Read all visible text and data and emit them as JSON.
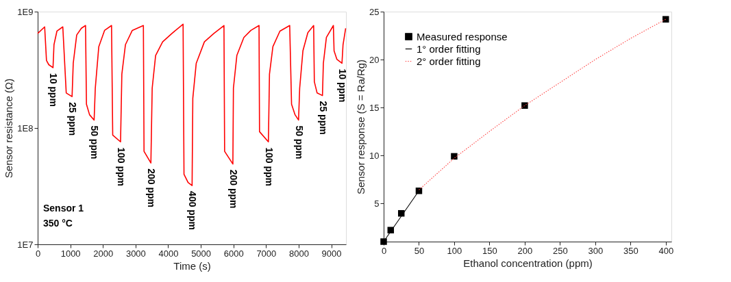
{
  "chart_data": [
    {
      "type": "line",
      "xlabel": "Time (s)",
      "ylabel": "Sensor resistance (Ω)",
      "log": "y",
      "grid": false,
      "xlim": [
        0,
        9450
      ],
      "ylim": [
        10000000,
        1000000000
      ],
      "xticks": [
        0,
        1000,
        2000,
        3000,
        4000,
        5000,
        6000,
        7000,
        8000,
        9000
      ],
      "yticks": [
        {
          "value": 10000000,
          "label": "1E7"
        },
        {
          "value": 100000000,
          "label": "1E8"
        },
        {
          "value": 1000000000,
          "label": "1E9"
        }
      ],
      "series": [
        {
          "color": "#ff0000",
          "line_style": "solid",
          "x": [
            0,
            214,
            270,
            340,
            470,
            500,
            590,
            770,
            875,
            1054,
            1090,
            1196,
            1340,
            1467,
            1495,
            1590,
            1730,
            1766,
            1873,
            2050,
            2264,
            2300,
            2540,
            2580,
            2690,
            2900,
            3240,
            3260,
            3470,
            3510,
            3615,
            3830,
            4115,
            4457,
            4485,
            4610,
            4733,
            4755,
            4860,
            5110,
            5400,
            5710,
            5730,
            5983,
            6000,
            6105,
            6320,
            6535,
            6785,
            6800,
            7072,
            7105,
            7210,
            7425,
            7725,
            7782,
            7889,
            7996,
            8031,
            8130,
            8281,
            8459,
            8480,
            8565,
            8729,
            8757,
            8850,
            9064,
            9085,
            9170,
            9327,
            9360,
            9440
          ],
          "values": [
            650000000.0,
            740000000.0,
            380000000.0,
            350000000.0,
            330000000.0,
            520000000.0,
            680000000.0,
            740000000.0,
            200000000.0,
            186000000.0,
            360000000.0,
            630000000.0,
            720000000.0,
            760000000.0,
            160000000.0,
            130000000.0,
            117000000.0,
            220000000.0,
            500000000.0,
            690000000.0,
            760000000.0,
            87000000.0,
            76000000.0,
            290000000.0,
            520000000.0,
            690000000.0,
            760000000.0,
            63000000.0,
            50000000.0,
            220000000.0,
            420000000.0,
            550000000.0,
            650000000.0,
            780000000.0,
            40000000.0,
            34000000.0,
            32000000.0,
            180000000.0,
            360000000.0,
            550000000.0,
            650000000.0,
            760000000.0,
            63000000.0,
            49000000.0,
            220000000.0,
            420000000.0,
            600000000.0,
            690000000.0,
            760000000.0,
            93000000.0,
            76000000.0,
            290000000.0,
            500000000.0,
            680000000.0,
            760000000.0,
            160000000.0,
            130000000.0,
            117000000.0,
            220000000.0,
            460000000.0,
            660000000.0,
            760000000.0,
            250000000.0,
            200000000.0,
            190000000.0,
            360000000.0,
            600000000.0,
            760000000.0,
            460000000.0,
            390000000.0,
            360000000.0,
            520000000.0,
            720000000.0
          ]
        }
      ],
      "annotations": [
        {
          "text": "10 ppm",
          "x": 470,
          "y": 330000000.0
        },
        {
          "text": "25 ppm",
          "x": 1054,
          "y": 186000000.0
        },
        {
          "text": "50 ppm",
          "x": 1730,
          "y": 117000000.0
        },
        {
          "text": "100 ppm",
          "x": 2540,
          "y": 76000000.0
        },
        {
          "text": "200 ppm",
          "x": 3470,
          "y": 50000000.0
        },
        {
          "text": "400 ppm",
          "x": 4733,
          "y": 32000000.0
        },
        {
          "text": "200 ppm",
          "x": 5983,
          "y": 49000000.0
        },
        {
          "text": "100 ppm",
          "x": 7072,
          "y": 76000000.0
        },
        {
          "text": "50 ppm",
          "x": 7996,
          "y": 117000000.0
        },
        {
          "text": "25 ppm",
          "x": 8729,
          "y": 190000000.0
        },
        {
          "text": "10 ppm",
          "x": 9327,
          "y": 360000000.0
        },
        "Sensor 1",
        "350 °C"
      ]
    },
    {
      "type": "scatter",
      "xlabel": "Ethanol concentration (ppm)",
      "ylabel": "Sensor response (S = Ra/Rg)",
      "grid": false,
      "legend": "top left",
      "xlim": [
        0,
        408
      ],
      "ylim": [
        1,
        25
      ],
      "xticks": [
        0,
        50,
        100,
        150,
        200,
        250,
        300,
        350,
        400
      ],
      "yticks": [
        5,
        10,
        15,
        20,
        25
      ],
      "series": [
        {
          "name": "Measured response",
          "color": "#000000",
          "marker": "square",
          "x": [
            0,
            10,
            25,
            50,
            100,
            200,
            400
          ],
          "values": [
            1,
            2.2,
            3.95,
            6.3,
            9.9,
            15.2,
            24.2
          ]
        },
        {
          "type": "line",
          "name": "1° order fitting",
          "color": "#000000",
          "line_style": "solid",
          "x": [
            0,
            50
          ],
          "values": [
            1,
            6.3
          ]
        },
        {
          "type": "line",
          "name": "2° order fitting",
          "color": "#ff4040",
          "line_style": "dotted",
          "x": [
            50,
            100,
            150,
            200,
            250,
            300,
            350,
            400
          ],
          "values": [
            6.4,
            9.7,
            12.5,
            15.2,
            17.6,
            20.0,
            22.2,
            24.2
          ]
        }
      ]
    }
  ]
}
